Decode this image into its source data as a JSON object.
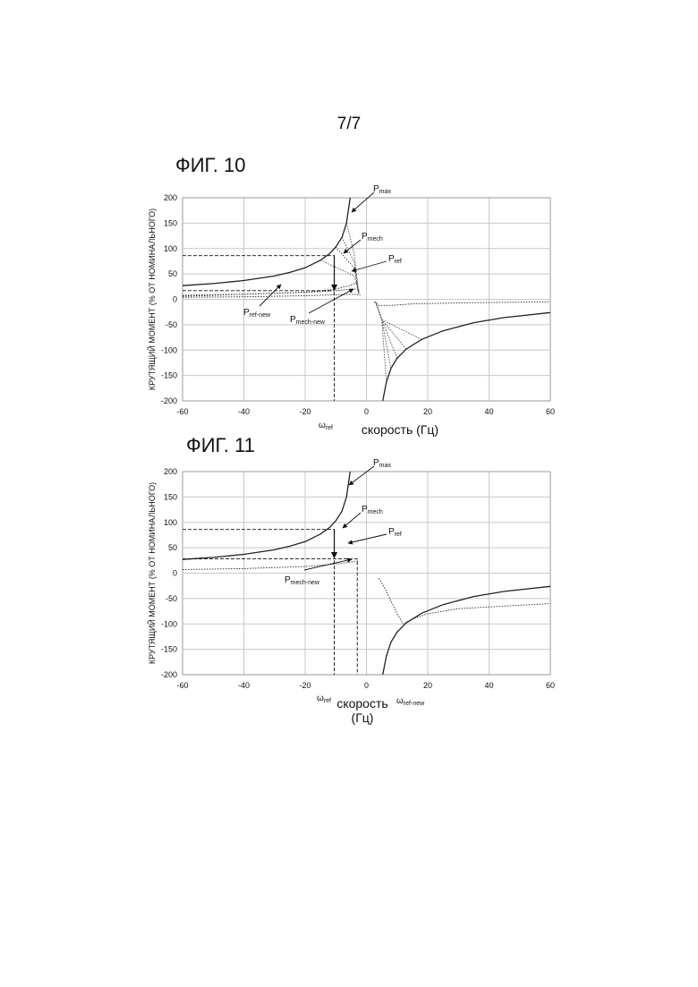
{
  "page": {
    "page_number": "7/7",
    "figures": [
      {
        "id": "fig10",
        "title": "ФИГ. 10"
      },
      {
        "id": "fig11",
        "title": "ФИГ. 11"
      }
    ]
  },
  "chart_data": [
    {
      "id": "fig10",
      "type": "line",
      "title": "ФИГ. 10",
      "xlabel": "скорость (Гц)",
      "ylabel": "КРУТЯЩИЙ МОМЕНТ (% ОТ НОМИНАЛЬНОГО)",
      "xlim": [
        -60,
        60
      ],
      "ylim": [
        -200,
        200
      ],
      "xticks": [
        -60,
        -40,
        -20,
        0,
        20,
        40,
        60
      ],
      "yticks": [
        -200,
        -150,
        -100,
        -50,
        0,
        50,
        100,
        150,
        200
      ],
      "grid": true,
      "series": [
        {
          "style": "solid",
          "x": [
            -60,
            -50,
            -40,
            -30,
            -25,
            -20,
            -15,
            -12,
            -10,
            -8,
            -6.5,
            -5.3
          ],
          "y": [
            27,
            31,
            37,
            46,
            53,
            62,
            77,
            90,
            103,
            122,
            150,
            200
          ]
        },
        {
          "style": "solid",
          "x": [
            5.3,
            6.5,
            8,
            10,
            13,
            18,
            25,
            35,
            45,
            60
          ],
          "y": [
            -200,
            -163,
            -136,
            -116,
            -98,
            -79,
            -62,
            -46,
            -36,
            -26
          ]
        },
        {
          "style": "dotted",
          "x": [
            -60,
            -40,
            -30,
            -20,
            -10,
            -5,
            -3
          ],
          "y": [
            6,
            10,
            12,
            14,
            20,
            28,
            33
          ]
        },
        {
          "style": "dotted",
          "x": [
            -60,
            -40,
            -20,
            -10,
            -5,
            -2.5,
            -2.5
          ],
          "y": [
            8,
            10,
            14,
            17,
            20,
            20,
            10
          ]
        },
        {
          "style": "dotted",
          "x": [
            -60,
            -40,
            -20,
            -10,
            -4,
            -2
          ],
          "y": [
            4,
            5,
            7,
            9,
            10,
            8
          ]
        },
        {
          "style": "dotted",
          "x": [
            2.5,
            4,
            8,
            15,
            30,
            60
          ],
          "y": [
            -5,
            -12,
            -12,
            -9,
            -7,
            -5
          ]
        }
      ],
      "annotations": [
        {
          "text": "P",
          "sub": "max"
        },
        {
          "text": "P",
          "sub": "mech"
        },
        {
          "text": "P",
          "sub": "ref"
        },
        {
          "text": "P",
          "sub": "ref-new"
        },
        {
          "text": "P",
          "sub": "mech-new"
        },
        {
          "text": "ω",
          "sub": "ref"
        }
      ]
    },
    {
      "id": "fig11",
      "type": "line",
      "title": "ФИГ. 11",
      "xlabel": "скорость (Гц)",
      "ylabel": "КРУТЯЩИЙ МОМЕНТ (% ОТ НОМИНАЛЬНОГО)",
      "xlim": [
        -60,
        60
      ],
      "ylim": [
        -200,
        200
      ],
      "xticks": [
        -60,
        -40,
        -20,
        0,
        20,
        40,
        60
      ],
      "yticks": [
        -200,
        -150,
        -100,
        -50,
        0,
        50,
        100,
        150,
        200
      ],
      "grid": true,
      "series": [
        {
          "style": "solid",
          "x": [
            -60,
            -50,
            -40,
            -30,
            -25,
            -20,
            -15,
            -12,
            -10,
            -8,
            -6.5,
            -5.3
          ],
          "y": [
            27,
            31,
            37,
            46,
            53,
            62,
            77,
            90,
            103,
            122,
            150,
            200
          ]
        },
        {
          "style": "solid",
          "x": [
            5.3,
            6.5,
            8,
            10,
            13,
            18,
            25,
            35,
            45,
            60
          ],
          "y": [
            -200,
            -163,
            -136,
            -116,
            -98,
            -79,
            -62,
            -46,
            -36,
            -26
          ]
        },
        {
          "style": "dotted",
          "x": [
            -60,
            -40,
            -20,
            -10,
            -5,
            -3,
            -3
          ],
          "y": [
            7,
            9,
            13,
            18,
            22,
            24,
            16
          ]
        },
        {
          "style": "dotted",
          "x": [
            4,
            6,
            8,
            10,
            12,
            15,
            20,
            30,
            60
          ],
          "y": [
            -10,
            -30,
            -55,
            -80,
            -100,
            -90,
            -80,
            -70,
            -60
          ]
        }
      ],
      "annotations": [
        {
          "text": "P",
          "sub": "max"
        },
        {
          "text": "P",
          "sub": "mech"
        },
        {
          "text": "P",
          "sub": "ref"
        },
        {
          "text": "P",
          "sub": "mech-new"
        },
        {
          "text": "ω",
          "sub": "ref"
        },
        {
          "text": "ω",
          "sub": "ref-new"
        }
      ]
    }
  ]
}
